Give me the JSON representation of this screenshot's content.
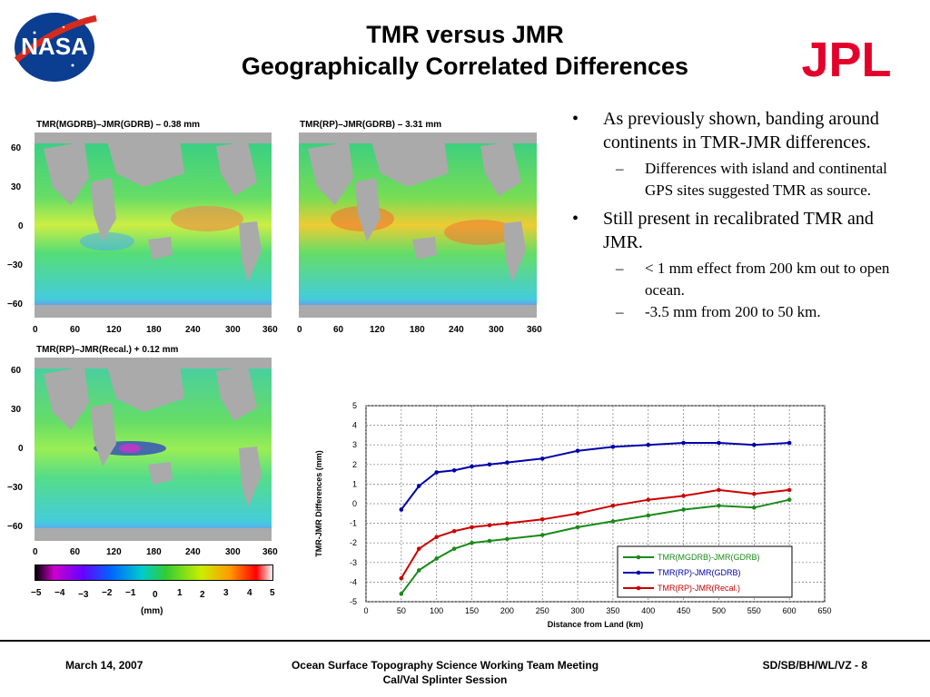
{
  "slide": {
    "title_line1": "TMR versus JMR",
    "title_line2": "Geographically Correlated Differences",
    "logo_left": "NASA",
    "logo_right": "JPL"
  },
  "maps": [
    {
      "label": "TMR(MGDRB)–JMR(GDRB) – 0.38 mm"
    },
    {
      "label": "TMR(RP)–JMR(GDRB) – 3.31 mm"
    },
    {
      "label": "TMR(RP)–JMR(Recal.) + 0.12 mm"
    }
  ],
  "map_axes": {
    "lat_ticks": [
      "60",
      "30",
      "0",
      "−30",
      "−60"
    ],
    "lon_ticks": [
      "0",
      "60",
      "120",
      "180",
      "240",
      "300",
      "360"
    ]
  },
  "colorbar": {
    "ticks": [
      "−5",
      "−4",
      "−3",
      "−2",
      "−1",
      "0",
      "1",
      "2",
      "3",
      "4",
      "5"
    ],
    "unit": "(mm)"
  },
  "bullets": [
    {
      "text": "As previously shown, banding around continents in TMR-JMR differences.",
      "sub": [
        "Differences with island and continental GPS sites suggested TMR as source."
      ]
    },
    {
      "text": "Still present in recalibrated TMR and JMR.",
      "sub": [
        "< 1 mm effect from 200 km out to open ocean.",
        "-3.5 mm from 200 to 50 km."
      ]
    }
  ],
  "chart_data": {
    "type": "line",
    "xlabel": "Distance from Land (km)",
    "ylabel": "TMR-JMR Differences (mm)",
    "xlim": [
      0,
      650
    ],
    "ylim": [
      -5,
      5
    ],
    "x_ticks": [
      0,
      50,
      100,
      150,
      200,
      250,
      300,
      350,
      400,
      450,
      500,
      550,
      600,
      650
    ],
    "y_ticks": [
      5,
      4,
      3,
      2,
      1,
      0,
      -1,
      -2,
      -3,
      -4,
      -5
    ],
    "grid": true,
    "legend_position": "bottom-right",
    "x": [
      50,
      75,
      100,
      125,
      150,
      175,
      200,
      250,
      300,
      350,
      400,
      450,
      500,
      550,
      600
    ],
    "series": [
      {
        "name": "TMR(MGDRB)-JMR(GDRB)",
        "color": "#1a8a1a",
        "values": [
          -4.6,
          -3.4,
          -2.8,
          -2.3,
          -2.0,
          -1.9,
          -1.8,
          -1.6,
          -1.2,
          -0.9,
          -0.6,
          -0.3,
          -0.1,
          -0.2,
          0.2
        ]
      },
      {
        "name": "TMR(RP)-JMR(GDRB)",
        "color": "#0000aa",
        "values": [
          -0.3,
          0.9,
          1.6,
          1.7,
          1.9,
          2.0,
          2.1,
          2.3,
          2.7,
          2.9,
          3.0,
          3.1,
          3.1,
          3.0,
          3.1
        ]
      },
      {
        "name": "TMR(RP)-JMR(Recal.)",
        "color": "#cc0000",
        "values": [
          -3.8,
          -2.3,
          -1.7,
          -1.4,
          -1.2,
          -1.1,
          -1.0,
          -0.8,
          -0.5,
          -0.1,
          0.2,
          0.4,
          0.7,
          0.5,
          0.7
        ]
      }
    ]
  },
  "footer": {
    "date": "March 14, 2007",
    "meeting": "Ocean Surface Topography Science Working Team Meeting",
    "session": "Cal/Val Splinter Session",
    "page": "SD/SB/BH/WL/VZ - 8"
  }
}
